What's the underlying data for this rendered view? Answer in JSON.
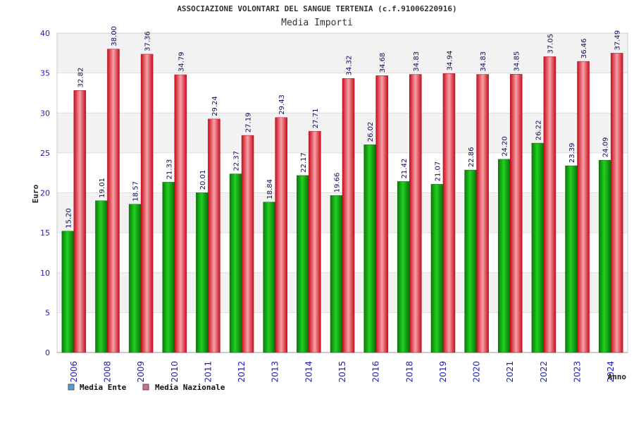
{
  "chart_data": {
    "type": "bar",
    "title": "ASSOCIAZIONE VOLONTARI DEL SANGUE TERTENIA (c.f.91006220916)",
    "subtitle": "Media Importi",
    "xlabel": "Anno",
    "ylabel": "Euro",
    "ylim": [
      0,
      40
    ],
    "yticks": [
      0,
      5,
      10,
      15,
      20,
      25,
      30,
      35,
      40
    ],
    "grid": true,
    "legend_position": "bottom-left",
    "categories": [
      "2006",
      "2008",
      "2009",
      "2010",
      "2011",
      "2012",
      "2013",
      "2014",
      "2015",
      "2016",
      "2018",
      "2019",
      "2020",
      "2021",
      "2022",
      "2023",
      "2024"
    ],
    "series": [
      {
        "name": "Media Ente",
        "legend_color": "#5b9bd5",
        "bar_color": "#12b012",
        "values": [
          15.2,
          19.01,
          18.57,
          21.33,
          20.01,
          22.37,
          18.84,
          22.17,
          19.66,
          26.02,
          21.42,
          21.07,
          22.86,
          24.2,
          26.22,
          23.39,
          24.09
        ],
        "labels": [
          "15.20",
          "19.01",
          "18.57",
          "21.33",
          "20.01",
          "22.37",
          "18.84",
          "22.17",
          "19.66",
          "26.02",
          "21.42",
          "21.07",
          "22.86",
          "24.20",
          "26.22",
          "23.39",
          "24.09"
        ]
      },
      {
        "name": "Media Nazionale",
        "legend_color": "#d46a9a",
        "bar_color": "#e0202e",
        "values": [
          32.82,
          38.0,
          37.36,
          34.79,
          29.24,
          27.19,
          29.43,
          27.71,
          34.32,
          34.68,
          34.83,
          34.94,
          34.83,
          34.85,
          37.05,
          36.46,
          37.49
        ],
        "labels": [
          "32.82",
          "38.00",
          "37.36",
          "34.79",
          "29.24",
          "27.19",
          "29.43",
          "27.71",
          "34.32",
          "34.68",
          "34.83",
          "34.94",
          "34.83",
          "34.85",
          "37.05",
          "36.46",
          "37.49"
        ]
      }
    ]
  }
}
